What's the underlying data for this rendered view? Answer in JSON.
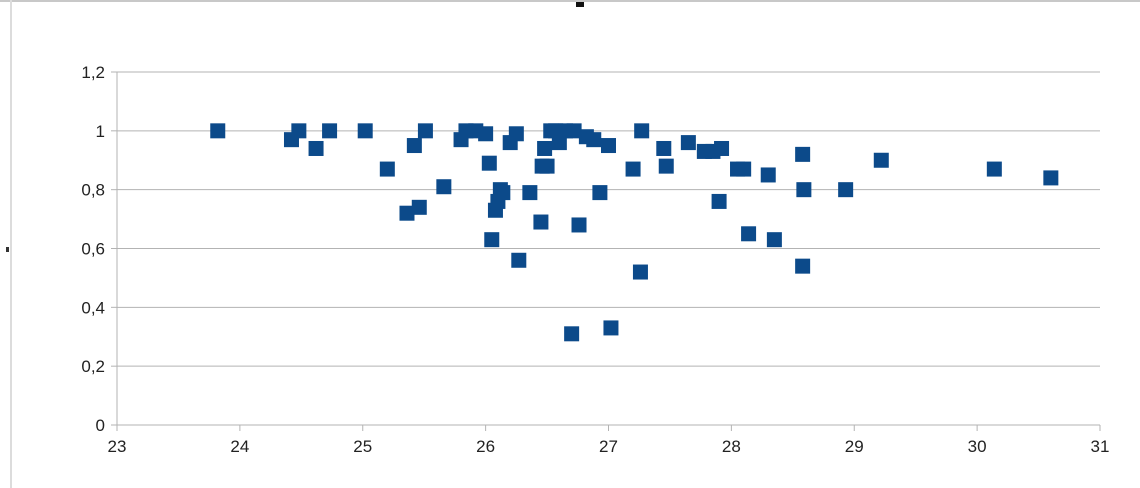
{
  "chart_data": {
    "type": "scatter",
    "title": "",
    "xlabel": "",
    "ylabel": "",
    "xlim": [
      23,
      31
    ],
    "ylim": [
      0,
      1.2
    ],
    "x_ticks": [
      "23",
      "24",
      "25",
      "26",
      "27",
      "28",
      "29",
      "30",
      "31"
    ],
    "y_ticks": [
      "0",
      "0,2",
      "0,4",
      "0,6",
      "0,8",
      "1",
      "1,2"
    ],
    "grid": "horizontal",
    "legend": "none",
    "marker": "square",
    "color": "#0c4a8a",
    "series": [
      {
        "points": [
          [
            23.82,
            1.0
          ],
          [
            24.42,
            0.97
          ],
          [
            24.48,
            1.0
          ],
          [
            24.62,
            0.94
          ],
          [
            24.73,
            1.0
          ],
          [
            25.02,
            1.0
          ],
          [
            25.2,
            0.87
          ],
          [
            25.36,
            0.72
          ],
          [
            25.42,
            0.95
          ],
          [
            25.46,
            0.74
          ],
          [
            25.51,
            1.0
          ],
          [
            25.66,
            0.81
          ],
          [
            25.8,
            0.97
          ],
          [
            25.84,
            1.0
          ],
          [
            25.92,
            1.0
          ],
          [
            26.0,
            0.99
          ],
          [
            26.03,
            0.89
          ],
          [
            26.05,
            0.63
          ],
          [
            26.08,
            0.73
          ],
          [
            26.1,
            0.76
          ],
          [
            26.12,
            0.8
          ],
          [
            26.14,
            0.79
          ],
          [
            26.2,
            0.96
          ],
          [
            26.25,
            0.99
          ],
          [
            26.27,
            0.56
          ],
          [
            26.36,
            0.79
          ],
          [
            26.45,
            0.69
          ],
          [
            26.46,
            0.88
          ],
          [
            26.48,
            0.94
          ],
          [
            26.5,
            0.88
          ],
          [
            26.53,
            1.0
          ],
          [
            26.57,
            1.0
          ],
          [
            26.6,
            0.96
          ],
          [
            26.65,
            1.0
          ],
          [
            26.7,
            0.31
          ],
          [
            26.72,
            1.0
          ],
          [
            26.76,
            0.68
          ],
          [
            26.82,
            0.98
          ],
          [
            26.88,
            0.97
          ],
          [
            26.93,
            0.79
          ],
          [
            27.0,
            0.95
          ],
          [
            27.02,
            0.33
          ],
          [
            27.2,
            0.87
          ],
          [
            27.26,
            0.52
          ],
          [
            27.27,
            1.0
          ],
          [
            27.45,
            0.94
          ],
          [
            27.47,
            0.88
          ],
          [
            27.65,
            0.96
          ],
          [
            27.78,
            0.93
          ],
          [
            27.85,
            0.93
          ],
          [
            27.9,
            0.76
          ],
          [
            27.92,
            0.94
          ],
          [
            28.05,
            0.87
          ],
          [
            28.1,
            0.87
          ],
          [
            28.14,
            0.65
          ],
          [
            28.3,
            0.85
          ],
          [
            28.35,
            0.63
          ],
          [
            28.58,
            0.92
          ],
          [
            28.58,
            0.54
          ],
          [
            28.59,
            0.8
          ],
          [
            28.93,
            0.8
          ],
          [
            29.22,
            0.9
          ],
          [
            30.14,
            0.87
          ],
          [
            30.6,
            0.84
          ]
        ]
      }
    ]
  }
}
